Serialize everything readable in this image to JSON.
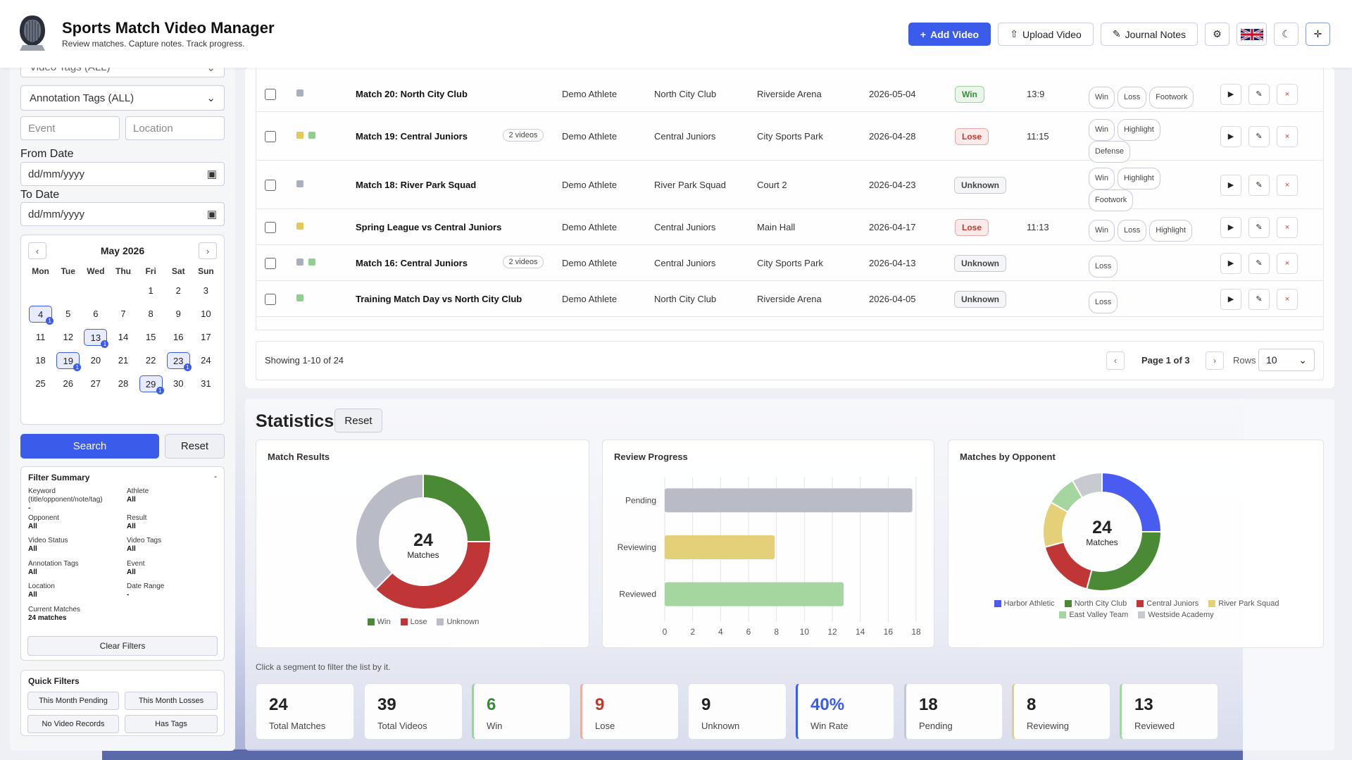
{
  "header": {
    "title": "Sports Match Video Manager",
    "subtitle": "Review matches. Capture notes. Track progress.",
    "add_video": "Add Video",
    "upload_video": "Upload Video",
    "journal_notes": "Journal Notes"
  },
  "filters": {
    "video_tags": "Video Tags (ALL)",
    "annotation_tags": "Annotation Tags (ALL)",
    "event_placeholder": "Event",
    "location_placeholder": "Location",
    "from_date_label": "From Date",
    "to_date_label": "To Date",
    "date_placeholder": "dd/mm/yyyy",
    "search": "Search",
    "reset": "Reset"
  },
  "calendar": {
    "month": "May 2026",
    "dows": [
      "Mon",
      "Tue",
      "Wed",
      "Thu",
      "Fri",
      "Sat",
      "Sun"
    ],
    "days": [
      "",
      "",
      "",
      "",
      "1",
      "2",
      "3",
      "4",
      "5",
      "6",
      "7",
      "8",
      "9",
      "10",
      "11",
      "12",
      "13",
      "14",
      "15",
      "16",
      "17",
      "18",
      "19",
      "20",
      "21",
      "22",
      "23",
      "24",
      "25",
      "26",
      "27",
      "28",
      "29",
      "30",
      "31"
    ],
    "marked": [
      "4",
      "13",
      "19",
      "23",
      "29"
    ]
  },
  "summary": {
    "title": "Filter Summary",
    "collapse": "-",
    "items": [
      {
        "label": "Keyword (title/opponent/note/tag)",
        "value": "-"
      },
      {
        "label": "Athlete",
        "value": "All"
      },
      {
        "label": "Opponent",
        "value": "All"
      },
      {
        "label": "Result",
        "value": "All"
      },
      {
        "label": "Video Status",
        "value": "All"
      },
      {
        "label": "Video Tags",
        "value": "All"
      },
      {
        "label": "Annotation Tags",
        "value": "All"
      },
      {
        "label": "Event",
        "value": "All"
      },
      {
        "label": "Location",
        "value": "All"
      },
      {
        "label": "Date Range",
        "value": "-"
      },
      {
        "label": "Current Matches",
        "value": "24 matches"
      }
    ],
    "clear": "Clear Filters"
  },
  "quick": {
    "title": "Quick Filters",
    "buttons": [
      "This Month Pending",
      "This Month Losses",
      "No Video Records",
      "Has Tags"
    ]
  },
  "table": {
    "rows": [
      {
        "title": "Match 20: North City Club",
        "videos": "",
        "athlete": "Demo Athlete",
        "opponent": "North City Club",
        "location": "Riverside Arena",
        "date": "2026-05-04",
        "result": "Win",
        "score": "13:9",
        "tags": [
          "Win",
          "Loss",
          "Footwork"
        ],
        "sq": [
          "#aab0bb"
        ]
      },
      {
        "title": "Match 19: Central Juniors",
        "videos": "2 videos",
        "athlete": "Demo Athlete",
        "opponent": "Central Juniors",
        "location": "City Sports Park",
        "date": "2026-04-28",
        "result": "Lose",
        "score": "11:15",
        "tags": [
          "Win",
          "Highlight",
          "Defense"
        ],
        "sq": [
          "#e2c95a",
          "#8fd08f"
        ]
      },
      {
        "title": "Match 18: River Park Squad",
        "videos": "",
        "athlete": "Demo Athlete",
        "opponent": "River Park Squad",
        "location": "Court 2",
        "date": "2026-04-23",
        "result": "Unknown",
        "score": "",
        "tags": [
          "Win",
          "Highlight",
          "Footwork"
        ],
        "sq": [
          "#aab0bb"
        ]
      },
      {
        "title": "Spring League vs Central Juniors",
        "videos": "",
        "athlete": "Demo Athlete",
        "opponent": "Central Juniors",
        "location": "Main Hall",
        "date": "2026-04-17",
        "result": "Lose",
        "score": "11:13",
        "tags": [
          "Win",
          "Loss",
          "Highlight"
        ],
        "sq": [
          "#e2c95a"
        ]
      },
      {
        "title": "Match 16: Central Juniors",
        "videos": "2 videos",
        "athlete": "Demo Athlete",
        "opponent": "Central Juniors",
        "location": "City Sports Park",
        "date": "2026-04-13",
        "result": "Unknown",
        "score": "",
        "tags": [
          "Loss"
        ],
        "sq": [
          "#aab0bb",
          "#8fd08f"
        ]
      },
      {
        "title": "Training Match Day vs North City Club",
        "videos": "",
        "athlete": "Demo Athlete",
        "opponent": "North City Club",
        "location": "Riverside Arena",
        "date": "2026-04-05",
        "result": "Unknown",
        "score": "",
        "tags": [
          "Loss"
        ],
        "sq": [
          "#8fd08f"
        ]
      }
    ],
    "showing": "Showing 1-10 of 24",
    "page": "Page 1 of 3",
    "rows_label": "Rows",
    "rows_value": "10"
  },
  "statistics": {
    "title": "Statistics",
    "reset": "Reset",
    "hint": "Click a segment to filter the list by it."
  },
  "chart_data": [
    {
      "type": "pie",
      "title": "Match Results",
      "center_value": "24",
      "center_label": "Matches",
      "labels": [
        "Win",
        "Lose",
        "Unknown"
      ],
      "values": [
        6,
        9,
        9
      ],
      "colors": [
        "#4a8a35",
        "#c03535",
        "#b9bcc6"
      ]
    },
    {
      "type": "bar",
      "title": "Review Progress",
      "categories": [
        "Pending",
        "Reviewing",
        "Reviewed"
      ],
      "values": [
        18,
        8,
        13
      ],
      "colors": [
        "#b9bcc6",
        "#e5d07a",
        "#a5d6a0"
      ],
      "xlim": [
        0,
        18
      ],
      "ticks": [
        "0",
        "2",
        "4",
        "6",
        "8",
        "10",
        "12",
        "14",
        "16",
        "18"
      ]
    },
    {
      "type": "pie",
      "title": "Matches by Opponent",
      "center_value": "24",
      "center_label": "Matches",
      "labels": [
        "Harbor Athletic",
        "North City Club",
        "Central Juniors",
        "River Park Squad",
        "East Valley Team",
        "Westside Academy"
      ],
      "values": [
        6,
        7,
        4,
        3,
        2,
        2
      ],
      "colors": [
        "#4a5cf0",
        "#4a8a35",
        "#c03535",
        "#e5d07a",
        "#a5d6a0",
        "#c8cad2"
      ]
    }
  ],
  "stats": [
    {
      "value": "24",
      "label": "Total Matches",
      "color": "#222",
      "accent": ""
    },
    {
      "value": "39",
      "label": "Total Videos",
      "color": "#222",
      "accent": ""
    },
    {
      "value": "6",
      "label": "Win",
      "color": "#3a8a3a",
      "accent": "#9fd09f"
    },
    {
      "value": "9",
      "label": "Lose",
      "color": "#c0392b",
      "accent": "#e8b0a0"
    },
    {
      "value": "9",
      "label": "Unknown",
      "color": "#222",
      "accent": ""
    },
    {
      "value": "40%",
      "label": "Win Rate",
      "color": "#3b5bea",
      "accent": "#3b5bea"
    },
    {
      "value": "18",
      "label": "Pending",
      "color": "#222",
      "accent": "#c5c8cf"
    },
    {
      "value": "8",
      "label": "Reviewing",
      "color": "#222",
      "accent": "#e5d07a"
    },
    {
      "value": "13",
      "label": "Reviewed",
      "color": "#222",
      "accent": "#a5d6a0"
    }
  ]
}
